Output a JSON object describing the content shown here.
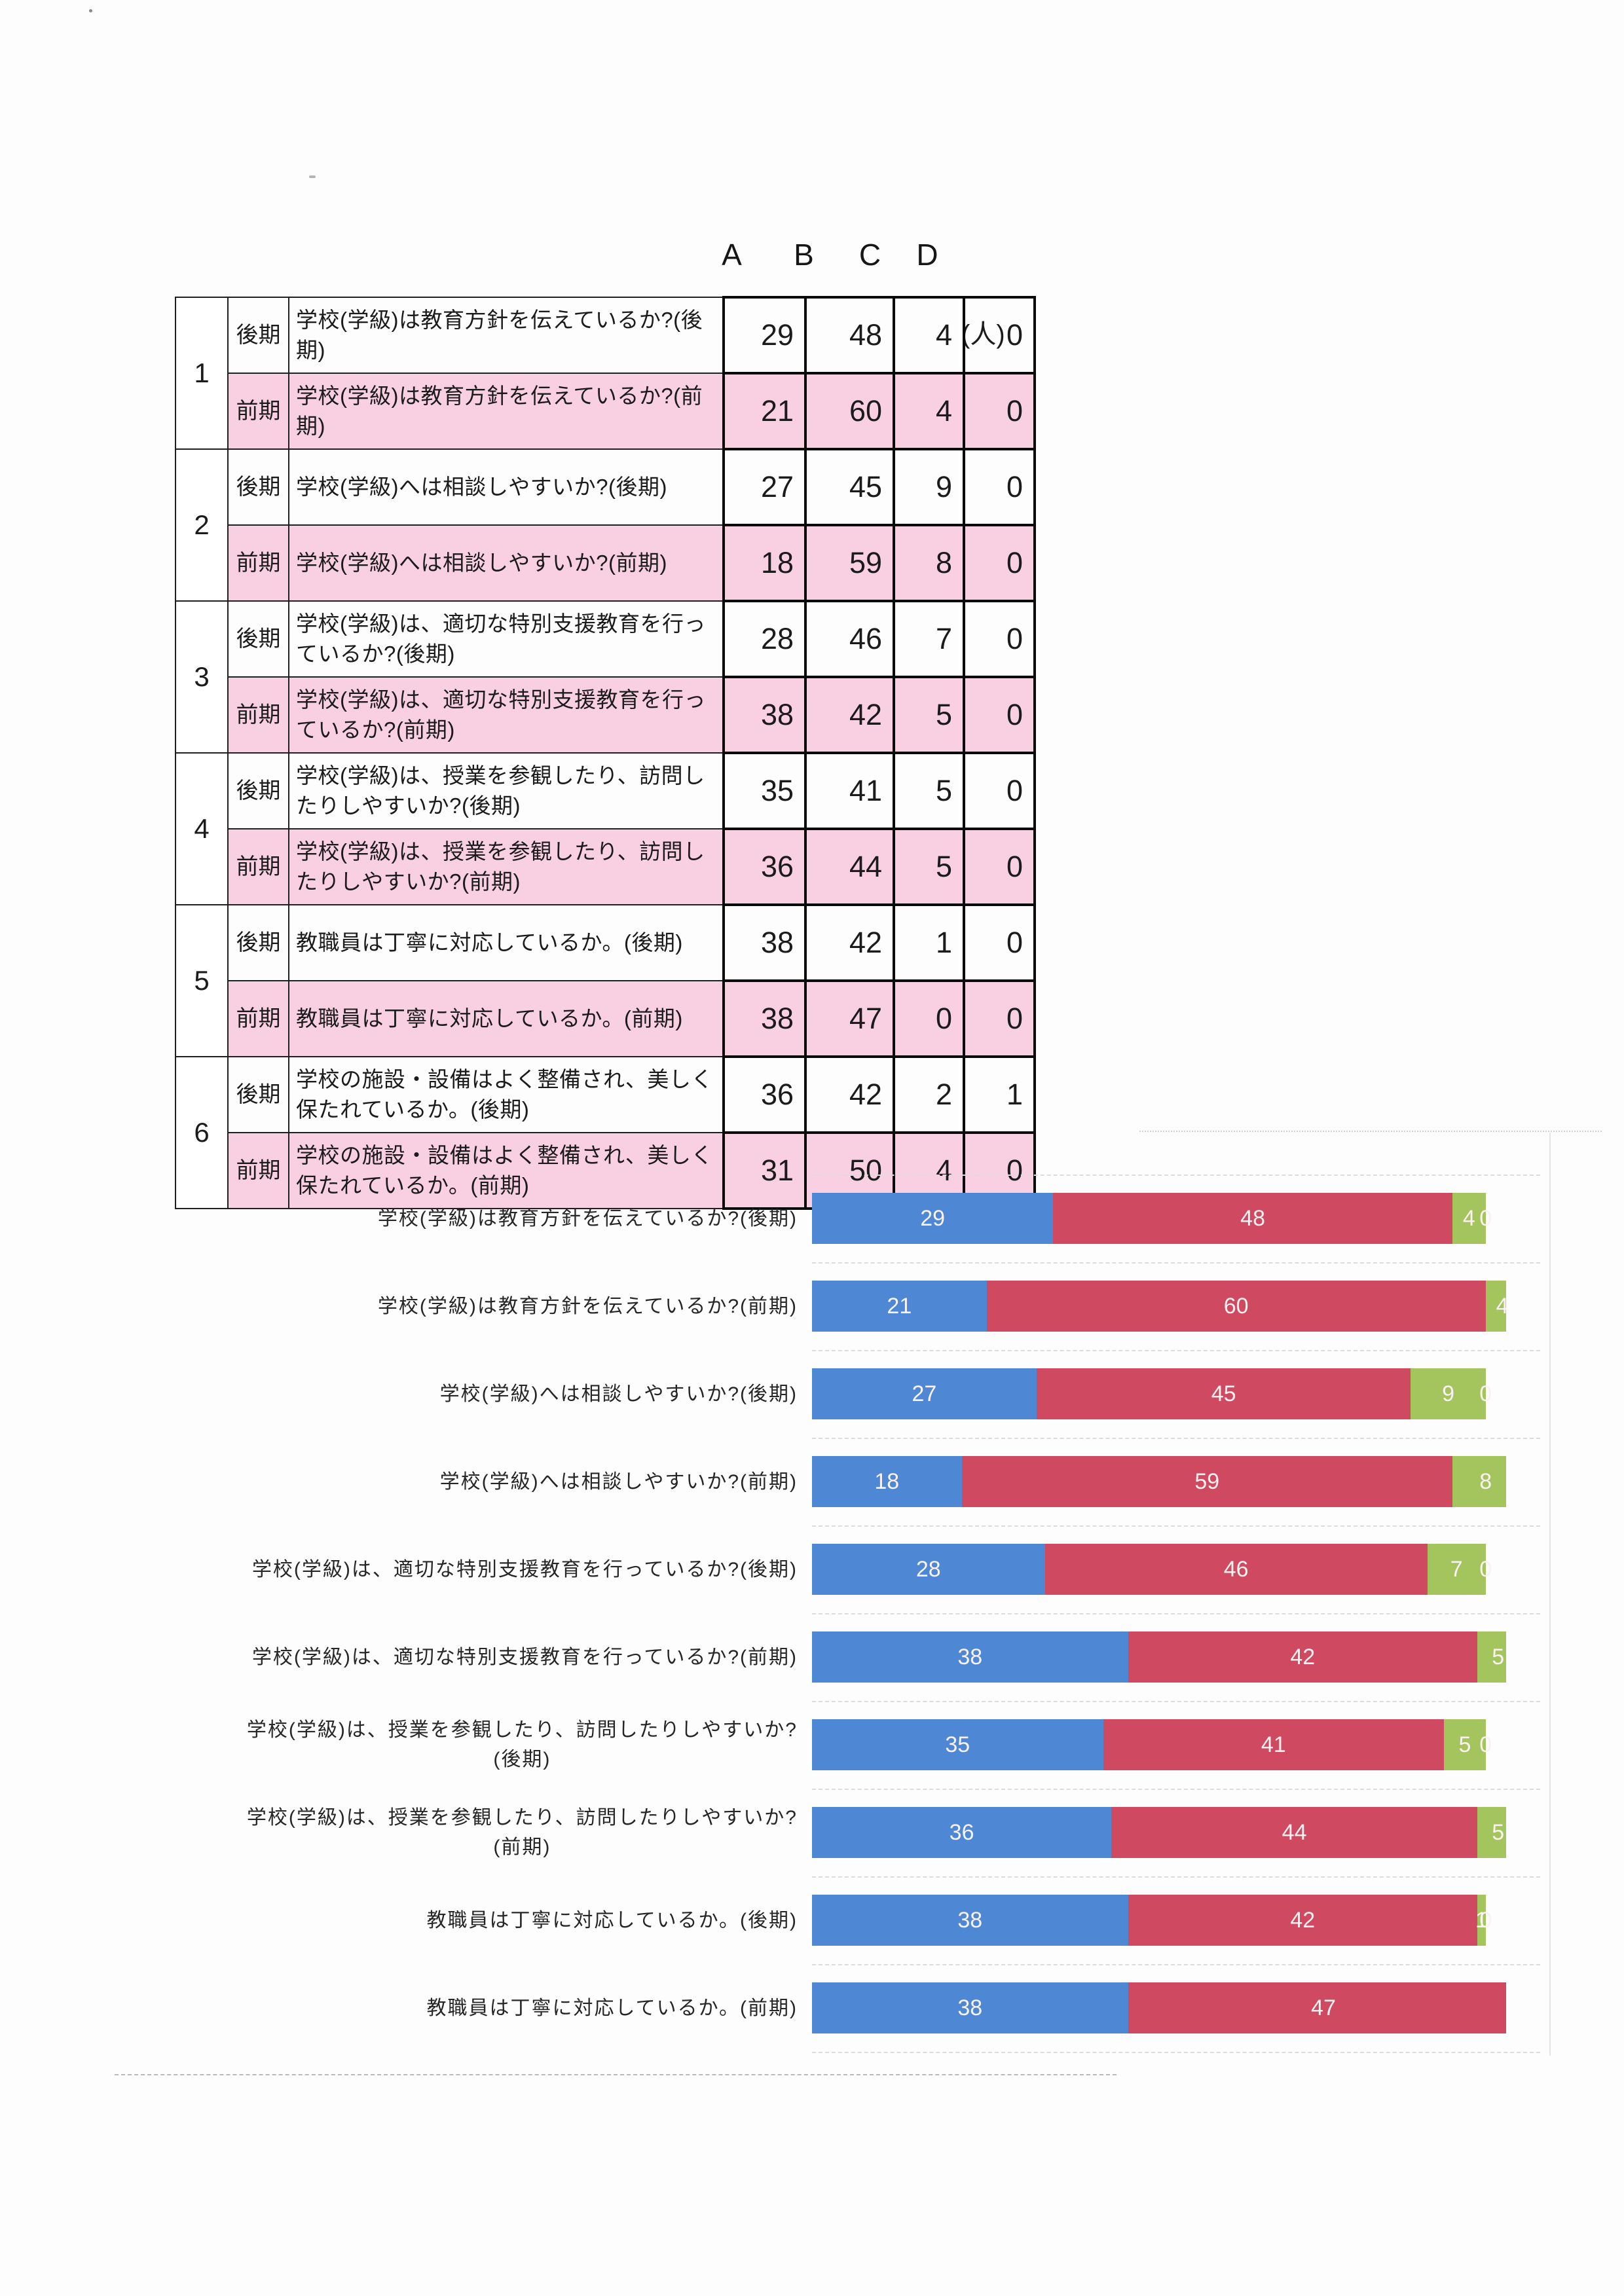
{
  "survey_table": {
    "column_headers": [
      "A",
      "B",
      "C",
      "D"
    ],
    "unit_label": "(人)",
    "highlight_color": "#f8d0e2",
    "pairs": [
      {
        "num": "1",
        "rows": [
          {
            "period": "後期",
            "question": "学校(学級)は教育方針を伝えているか?(後期)",
            "values": [
              29,
              48,
              4,
              0
            ],
            "highlighted": false
          },
          {
            "period": "前期",
            "question": "学校(学級)は教育方針を伝えているか?(前期)",
            "values": [
              21,
              60,
              4,
              0
            ],
            "highlighted": true
          }
        ]
      },
      {
        "num": "2",
        "rows": [
          {
            "period": "後期",
            "question": "学校(学級)へは相談しやすいか?(後期)",
            "values": [
              27,
              45,
              9,
              0
            ],
            "highlighted": false
          },
          {
            "period": "前期",
            "question": "学校(学級)へは相談しやすいか?(前期)",
            "values": [
              18,
              59,
              8,
              0
            ],
            "highlighted": true
          }
        ]
      },
      {
        "num": "3",
        "rows": [
          {
            "period": "後期",
            "question": "学校(学級)は、適切な特別支援教育を行っているか?(後期)",
            "values": [
              28,
              46,
              7,
              0
            ],
            "highlighted": false
          },
          {
            "period": "前期",
            "question": "学校(学級)は、適切な特別支援教育を行っているか?(前期)",
            "values": [
              38,
              42,
              5,
              0
            ],
            "highlighted": true
          }
        ]
      },
      {
        "num": "4",
        "rows": [
          {
            "period": "後期",
            "question": "学校(学級)は、授業を参観したり、訪問したりしやすいか?(後期)",
            "values": [
              35,
              41,
              5,
              0
            ],
            "highlighted": false
          },
          {
            "period": "前期",
            "question": "学校(学級)は、授業を参観したり、訪問したりしやすいか?(前期)",
            "values": [
              36,
              44,
              5,
              0
            ],
            "highlighted": true
          }
        ]
      },
      {
        "num": "5",
        "rows": [
          {
            "period": "後期",
            "question": "教職員は丁寧に対応しているか。(後期)",
            "values": [
              38,
              42,
              1,
              0
            ],
            "highlighted": false
          },
          {
            "period": "前期",
            "question": "教職員は丁寧に対応しているか。(前期)",
            "values": [
              38,
              47,
              0,
              0
            ],
            "highlighted": true
          }
        ]
      },
      {
        "num": "6",
        "rows": [
          {
            "period": "後期",
            "question": "学校の施設・設備はよく整備され、美しく保たれているか。(後期)",
            "values": [
              36,
              42,
              2,
              1
            ],
            "highlighted": false
          },
          {
            "period": "前期",
            "question": "学校の施設・設備はよく整備され、美しく保たれているか。(前期)",
            "values": [
              31,
              50,
              4,
              0
            ],
            "highlighted": true
          }
        ]
      }
    ]
  },
  "chart_data": {
    "type": "bar",
    "orientation": "horizontal_stacked",
    "title": "",
    "series_names": [
      "A",
      "B",
      "C",
      "D"
    ],
    "series_colors": {
      "A": "#4e88d4",
      "B": "#cf4a60",
      "C": "#a4c45e"
    },
    "value_label_color": "#faf1f2",
    "x_axis": {
      "min": 0,
      "right_edge_clipped": true,
      "gridlines": false
    },
    "categories": [
      "学校(学級)は教育方針を伝えているか?(後期)",
      "学校(学級)は教育方針を伝えているか?(前期)",
      "学校(学級)へは相談しやすいか?(後期)",
      "学校(学級)へは相談しやすいか?(前期)",
      "学校(学級)は、適切な特別支援教育を行っているか?(後期)",
      "学校(学級)は、適切な特別支援教育を行っているか?(前期)",
      "学校(学級)は、授業を参観したり、訪問したりしやすいか?(後期)",
      "学校(学級)は、授業を参観したり、訪問したりしやすいか?(前期)",
      "教職員は丁寧に対応しているか。(後期)",
      "教職員は丁寧に対応しているか。(前期)"
    ],
    "bars": [
      {
        "label_lines": [
          "学校(学級)は教育方針を伝えているか?(後期)"
        ],
        "values": [
          29,
          48,
          4,
          0
        ]
      },
      {
        "label_lines": [
          "学校(学級)は教育方針を伝えているか?(前期)"
        ],
        "values": [
          21,
          60,
          4,
          0
        ]
      },
      {
        "label_lines": [
          "学校(学級)へは相談しやすいか?(後期)"
        ],
        "values": [
          27,
          45,
          9,
          0
        ]
      },
      {
        "label_lines": [
          "学校(学級)へは相談しやすいか?(前期)"
        ],
        "values": [
          18,
          59,
          8,
          0
        ]
      },
      {
        "label_lines": [
          "学校(学級)は、適切な特別支援教育を行っているか?(後期)"
        ],
        "values": [
          28,
          46,
          7,
          0
        ]
      },
      {
        "label_lines": [
          "学校(学級)は、適切な特別支援教育を行っているか?(前期)"
        ],
        "values": [
          38,
          42,
          5,
          0
        ]
      },
      {
        "label_lines": [
          "学校(学級)は、授業を参観したり、訪問したりしやすいか?",
          "(後期)"
        ],
        "values": [
          35,
          41,
          5,
          0
        ]
      },
      {
        "label_lines": [
          "学校(学級)は、授業を参観したり、訪問したりしやすいか?",
          "(前期)"
        ],
        "values": [
          36,
          44,
          5,
          0
        ]
      },
      {
        "label_lines": [
          "教職員は丁寧に対応しているか。(後期)"
        ],
        "values": [
          38,
          42,
          1,
          0
        ]
      },
      {
        "label_lines": [
          "教職員は丁寧に対応しているか。(前期)"
        ],
        "values": [
          38,
          47,
          0,
          0
        ]
      }
    ]
  }
}
